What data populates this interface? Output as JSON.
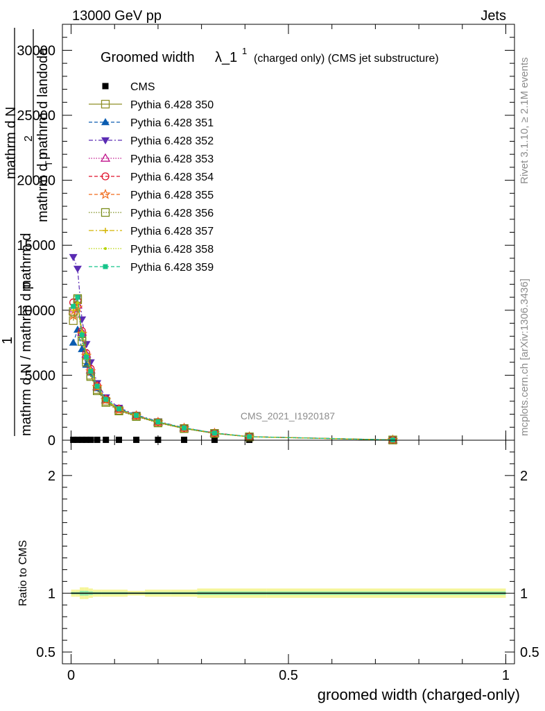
{
  "header": {
    "left": "13000 GeV pp",
    "right": "Jets"
  },
  "side_labels": {
    "rivet": "Rivet 3.1.10, ≥ 2.1M events",
    "mcplots": "mcplots.cern.ch [arXiv:1306.3436]"
  },
  "watermark": "CMS_2021_I1920187",
  "chart_data": [
    {
      "type": "line",
      "title_main": "Groomed width",
      "title_symbol": "λ_1",
      "title_sup": "1",
      "title_suffix": "(charged only) (CMS jet substructure)",
      "ylabel_parts": [
        "1",
        "mathrm d N / mathrm d p",
        "mathrm d",
        "mathrm d N",
        "mathrm d p",
        "T",
        "mathrm d landoda",
        "2"
      ],
      "xlabel": "groomed width (charged-only)",
      "xlim": [
        -0.02,
        1.02
      ],
      "ylim": [
        0,
        32000
      ],
      "x_ticks": [
        0,
        0.5,
        1
      ],
      "x_tick_labels": [
        "0",
        "0.5",
        "1"
      ],
      "y_ticks": [
        0,
        5000,
        10000,
        15000,
        20000,
        25000,
        30000
      ],
      "y_tick_labels": [
        "0",
        "5000",
        "10000",
        "15000",
        "20000",
        "25000",
        "30000"
      ],
      "legend_position": "top-left",
      "x": [
        0.005,
        0.015,
        0.025,
        0.035,
        0.045,
        0.06,
        0.08,
        0.11,
        0.15,
        0.2,
        0.26,
        0.33,
        0.41,
        0.74
      ],
      "series": [
        {
          "name": "CMS",
          "color": "#000000",
          "marker": "square-filled",
          "dash": "none",
          "values": [
            30,
            30,
            30,
            30,
            30,
            30,
            30,
            30,
            30,
            30,
            30,
            30,
            30,
            30
          ]
        },
        {
          "name": "Pythia 6.428 350",
          "color": "#8e8e24",
          "marker": "square-open",
          "dash": "solid",
          "values": [
            9200,
            10800,
            8000,
            6200,
            5000,
            3900,
            3000,
            2300,
            1850,
            1350,
            900,
            520,
            260,
            20
          ]
        },
        {
          "name": "Pythia 6.428 351",
          "color": "#0b5cb0",
          "marker": "triangle-up-filled",
          "dash": "5,3",
          "values": [
            7500,
            8500,
            7000,
            5800,
            5200,
            4000,
            3100,
            2400,
            1900,
            1400,
            950,
            550,
            270,
            20
          ]
        },
        {
          "name": "Pythia 6.428 352",
          "color": "#5a2bb3",
          "marker": "triangle-down-filled",
          "dash": "6,3,2,3",
          "values": [
            14100,
            13200,
            9300,
            7400,
            6000,
            4400,
            3300,
            2500,
            1950,
            1450,
            960,
            560,
            280,
            25
          ]
        },
        {
          "name": "Pythia 6.428 353",
          "color": "#c0148c",
          "marker": "triangle-up-open",
          "dash": "1.5,2",
          "values": [
            10100,
            10400,
            8300,
            6600,
            5400,
            4100,
            3100,
            2400,
            1900,
            1400,
            940,
            550,
            270,
            20
          ]
        },
        {
          "name": "Pythia 6.428 354",
          "color": "#e0102a",
          "marker": "circle-open",
          "dash": "5,3",
          "values": [
            10600,
            10700,
            8400,
            6700,
            5500,
            4200,
            3150,
            2400,
            1900,
            1400,
            940,
            550,
            270,
            20
          ]
        },
        {
          "name": "Pythia 6.428 355",
          "color": "#f06a1a",
          "marker": "star-open",
          "dash": "5,3",
          "values": [
            9600,
            10200,
            8200,
            6500,
            5300,
            4100,
            3100,
            2350,
            1880,
            1380,
            930,
            540,
            265,
            20
          ]
        },
        {
          "name": "Pythia 6.428 356",
          "color": "#7a8c1a",
          "marker": "square-open",
          "dash": "1.5,2",
          "values": [
            9900,
            10900,
            7600,
            6000,
            4900,
            3800,
            2900,
            2250,
            1820,
            1330,
            890,
            520,
            255,
            20
          ]
        },
        {
          "name": "Pythia 6.428 357",
          "color": "#d4b400",
          "marker": "plus",
          "dash": "7,3,2,3",
          "values": [
            10000,
            10500,
            8300,
            6600,
            5400,
            4100,
            3100,
            2400,
            1900,
            1400,
            940,
            545,
            268,
            20
          ]
        },
        {
          "name": "Pythia 6.428 358",
          "color": "#b6d400",
          "marker": "dot",
          "dash": "1.5,2",
          "values": [
            10200,
            10600,
            8350,
            6650,
            5450,
            4150,
            3120,
            2400,
            1900,
            1400,
            940,
            548,
            270,
            20
          ]
        },
        {
          "name": "Pythia 6.428 359",
          "color": "#16c48a",
          "marker": "square-filled-small",
          "dash": "5,3",
          "values": [
            10300,
            11000,
            8100,
            6400,
            5300,
            4150,
            3150,
            2420,
            1910,
            1410,
            945,
            550,
            272,
            20
          ]
        }
      ]
    },
    {
      "type": "area",
      "ylabel": "Ratio to CMS",
      "xlim": [
        -0.02,
        1.02
      ],
      "ylim": [
        0.4,
        2.3
      ],
      "y_ticks": [
        0.5,
        1,
        2
      ],
      "y_tick_labels": [
        "0.5",
        "1",
        "2"
      ],
      "reference_line": 1,
      "bins": [
        0,
        0.01,
        0.02,
        0.03,
        0.04,
        0.05,
        0.07,
        0.09,
        0.13,
        0.17,
        0.23,
        0.29,
        0.37,
        0.45,
        1.0
      ],
      "band_outer_low": [
        0.97,
        0.97,
        0.95,
        0.95,
        0.96,
        0.97,
        0.97,
        0.97,
        0.98,
        0.97,
        0.97,
        0.96,
        0.96,
        0.96
      ],
      "band_outer_high": [
        1.03,
        1.03,
        1.05,
        1.05,
        1.04,
        1.03,
        1.03,
        1.03,
        1.02,
        1.03,
        1.03,
        1.04,
        1.04,
        1.04
      ],
      "band_inner_low": [
        0.99,
        0.99,
        0.98,
        0.98,
        0.985,
        0.99,
        0.99,
        0.99,
        0.993,
        0.99,
        0.99,
        0.985,
        0.985,
        0.985
      ],
      "band_inner_high": [
        1.01,
        1.01,
        1.02,
        1.02,
        1.015,
        1.01,
        1.01,
        1.01,
        1.007,
        1.01,
        1.01,
        1.015,
        1.015,
        1.015
      ]
    }
  ]
}
